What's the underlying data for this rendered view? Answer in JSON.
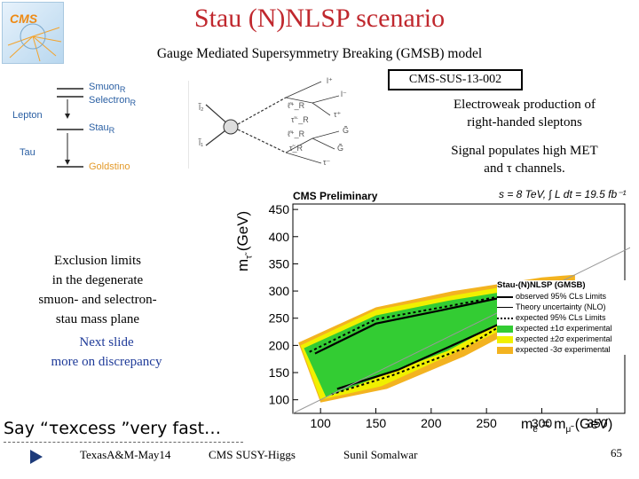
{
  "slide": {
    "title": "Stau (N)NLSP scenario",
    "subtitle": "Gauge Mediated Supersymmetry Breaking (GMSB) model",
    "ref": "CMS-SUS-13-002",
    "logo": "CMS",
    "desc1_line1": "Electroweak production of",
    "desc1_line2": "right-handed sleptons",
    "desc2_line1": "Signal populates high MET",
    "desc2_line2": "and τ channels.",
    "side1": [
      "Exclusion limits",
      "in the degenerate",
      "smuon- and selectron-",
      "stau mass plane"
    ],
    "side2": [
      "Next slide",
      "more on discrepancy"
    ],
    "say": "Say “τexcess ”very fast…",
    "footer_left": "TexasA&M-May14",
    "footer_mid": "CMS SUSY-Higgs",
    "footer_right": "Sunil Somalwar",
    "page": "65"
  },
  "levels": {
    "smuon": "Smuon",
    "smuon_sub": "R",
    "selectron": "Selectron",
    "selectron_sub": "R",
    "lepton": "Lepton",
    "stau": "Stau",
    "stau_sub": "R",
    "tau": "Tau",
    "goldstino": "Goldstino"
  },
  "feynman": {
    "in1": "l̃₂",
    "in2": "l̃₁",
    "out1": "l⁺",
    "out2": "ℓ̃⁺_R",
    "out3": "τ̃⁻_R",
    "out4": "ℓ̃⁺_R",
    "out5": "τ̃_R",
    "leg1": "l⁻",
    "leg2": "τ⁺",
    "leg3": "G̃",
    "leg4": "G̃",
    "leg5": "τ⁻"
  },
  "plot": {
    "header_left": "CMS Preliminary",
    "header_right": "s = 8 TeV, ∫ L dt = 19.5 fb⁻¹",
    "legend_title": "Stau-(N)NLSP (GMSB)",
    "legend": [
      "observed 95% CLs Limits",
      "Theory uncertainty (NLO)",
      "expected 95% CLs Limits",
      "expected ±1σ experimental",
      "expected ±2σ experimental",
      "expected -3σ experimental"
    ],
    "ylabel": "m",
    "ylabel_sub": "τ̃",
    "ylabel_unit": "(GeV)",
    "xlabel": "m",
    "xlabel_sub": "ẽ",
    "xlabel_eq": "= m",
    "xlabel_sub2": "μ̃",
    "xlabel_unit": "(GeV)"
  },
  "chart_data": {
    "type": "area",
    "title": "CMS Preliminary  s = 8 TeV, ∫ L dt = 19.5 fb⁻¹",
    "xlabel": "selectron = smuon mass (GeV)",
    "ylabel": "stau mass (GeV)",
    "xlim": [
      75,
      375
    ],
    "ylim": [
      75,
      460
    ],
    "x_ticks": [
      100,
      150,
      200,
      250,
      300,
      350
    ],
    "y_ticks": [
      100,
      150,
      200,
      250,
      300,
      350,
      400,
      450
    ],
    "series": [
      {
        "name": "expected -3σ experimental",
        "x": [
          80,
          150,
          220,
          300,
          330,
          330,
          300,
          230,
          160,
          100,
          80
        ],
        "y": [
          205,
          270,
          300,
          325,
          330,
          300,
          255,
          180,
          120,
          95,
          205
        ]
      },
      {
        "name": "expected ±2σ experimental",
        "x": [
          82,
          150,
          220,
          295,
          320,
          320,
          290,
          220,
          155,
          100,
          82
        ],
        "y": [
          200,
          265,
          292,
          318,
          320,
          300,
          255,
          185,
          125,
          100,
          200
        ]
      },
      {
        "name": "expected ±1σ experimental",
        "x": [
          85,
          150,
          215,
          285,
          305,
          300,
          270,
          215,
          150,
          105,
          85
        ],
        "y": [
          195,
          255,
          282,
          305,
          305,
          290,
          250,
          190,
          140,
          105,
          195
        ]
      },
      {
        "name": "expected 95% CLs Limits",
        "x": [
          90,
          150,
          215,
          275,
          290,
          230,
          165,
          110
        ],
        "y": [
          188,
          248,
          272,
          295,
          270,
          195,
          145,
          110
        ]
      },
      {
        "name": "observed 95% CLs Limits",
        "x": [
          95,
          150,
          210,
          280,
          300,
          230,
          170,
          115
        ],
        "y": [
          185,
          240,
          265,
          295,
          275,
          210,
          155,
          120
        ]
      }
    ]
  }
}
